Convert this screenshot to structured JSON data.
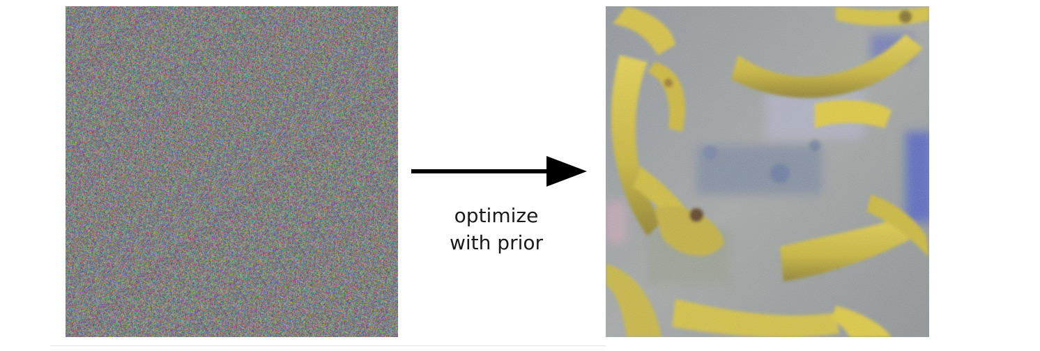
{
  "diagram": {
    "caption_lines": [
      "optimize",
      "with prior"
    ],
    "input_image": {
      "description_icon": "random-noise-image",
      "colors": [
        "#b85a78",
        "#5f9e6e",
        "#6c6ab8",
        "#a9a86a",
        "#8a8a8e"
      ]
    },
    "output_image": {
      "description_icon": "banana-visualization-image",
      "colors": {
        "banana_yellow": "#d8c43a",
        "banana_dark": "#a08a2a",
        "background_gray": "#9ea3a8",
        "accent_blue": "#4b5ec8"
      }
    },
    "arrow_color": "#000000"
  }
}
